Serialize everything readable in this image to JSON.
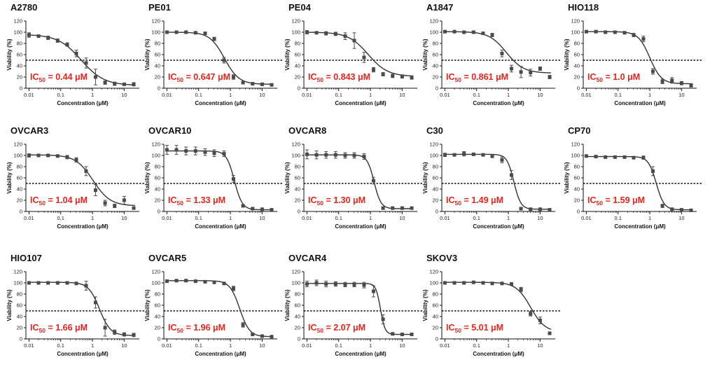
{
  "figure": {
    "ylabel": "Viability (%)",
    "xlabel": "Concentration (μM)",
    "ic_prefix": "IC",
    "ic_sub": "50",
    "ic_eq": " = ",
    "ic_unit": " μM",
    "ytick_labels": [
      "0",
      "20",
      "40",
      "60",
      "80",
      "100",
      "120"
    ],
    "xtick_labels": [
      "0.01",
      "0.1",
      "1",
      "10"
    ],
    "colors": {
      "ic50_text": "#e8241c",
      "curve": "#333333",
      "marker": "#4a4a4a",
      "threshold": "#111111"
    }
  },
  "chart_data": [
    {
      "type": "scatter",
      "title": "A2780",
      "ic50_label": "0.44",
      "ic50": 0.44,
      "hill": 1.2,
      "top": 96,
      "bottom": 5,
      "xlim": [
        0.008,
        30
      ],
      "ylim": [
        0,
        120
      ],
      "threshold_y": 50,
      "xlabel": "Concentration (μM)",
      "ylabel": "Viability (%)",
      "x": [
        0.01,
        0.02,
        0.04,
        0.08,
        0.16,
        0.31,
        0.63,
        1.25,
        2.5,
        5,
        10,
        20
      ],
      "y": [
        95,
        93,
        90,
        85,
        78,
        62,
        45,
        20,
        10,
        8,
        7,
        7
      ],
      "err": [
        4,
        2,
        3,
        3,
        3,
        6,
        9,
        14,
        3,
        3,
        2,
        3
      ]
    },
    {
      "type": "scatter",
      "title": "PE01",
      "ic50_label": "0.647",
      "ic50": 0.647,
      "hill": 1.9,
      "top": 100,
      "bottom": 7,
      "xlim": [
        0.008,
        30
      ],
      "ylim": [
        0,
        120
      ],
      "threshold_y": 50,
      "xlabel": "Concentration (μM)",
      "ylabel": "Viability (%)",
      "x": [
        0.01,
        0.02,
        0.04,
        0.08,
        0.16,
        0.31,
        0.63,
        1.25,
        2.5,
        5,
        10,
        20
      ],
      "y": [
        100,
        100,
        100,
        99,
        98,
        88,
        50,
        20,
        10,
        8,
        7,
        6
      ],
      "err": [
        2,
        2,
        2,
        2,
        2,
        3,
        5,
        4,
        2,
        2,
        2,
        2
      ]
    },
    {
      "type": "scatter",
      "title": "PE04",
      "ic50_label": "0.843",
      "ic50": 0.843,
      "hill": 1.4,
      "top": 100,
      "bottom": 21,
      "xlim": [
        0.008,
        30
      ],
      "ylim": [
        0,
        120
      ],
      "threshold_y": 50,
      "xlabel": "Concentration (μM)",
      "ylabel": "Viability (%)",
      "x": [
        0.01,
        0.02,
        0.04,
        0.08,
        0.16,
        0.31,
        0.63,
        1.25,
        2.5,
        5,
        10,
        20
      ],
      "y": [
        100,
        99,
        98,
        97,
        93,
        85,
        55,
        33,
        25,
        22,
        21,
        19
      ],
      "err": [
        3,
        2,
        3,
        3,
        6,
        14,
        9,
        4,
        3,
        3,
        3,
        3
      ]
    },
    {
      "type": "scatter",
      "title": "A1847",
      "ic50_label": "0.861",
      "ic50": 0.861,
      "hill": 1.6,
      "top": 101,
      "bottom": 27,
      "xlim": [
        0.008,
        30
      ],
      "ylim": [
        0,
        120
      ],
      "threshold_y": 50,
      "xlabel": "Concentration (μM)",
      "ylabel": "Viability (%)",
      "x": [
        0.01,
        0.02,
        0.04,
        0.08,
        0.16,
        0.31,
        0.63,
        1.25,
        2.5,
        5,
        10,
        20
      ],
      "y": [
        101,
        101,
        100,
        100,
        98,
        95,
        62,
        35,
        29,
        28,
        35,
        20
      ],
      "err": [
        2,
        1,
        1,
        1,
        2,
        3,
        6,
        6,
        10,
        6,
        3,
        3
      ]
    },
    {
      "type": "scatter",
      "title": "HIO118",
      "ic50_label": "1.0",
      "ic50": 1.0,
      "hill": 2.4,
      "top": 101,
      "bottom": 8,
      "xlim": [
        0.008,
        30
      ],
      "ylim": [
        0,
        120
      ],
      "threshold_y": 50,
      "xlabel": "Concentration (μM)",
      "ylabel": "Viability (%)",
      "x": [
        0.01,
        0.02,
        0.04,
        0.08,
        0.16,
        0.31,
        0.63,
        1.25,
        2.5,
        5,
        10,
        20
      ],
      "y": [
        101,
        101,
        100,
        100,
        99,
        95,
        88,
        30,
        12,
        14,
        9,
        5
      ],
      "err": [
        2,
        1,
        1,
        1,
        1,
        3,
        5,
        5,
        4,
        5,
        3,
        3
      ]
    },
    {
      "type": "scatter",
      "title": "OVCAR3",
      "ic50_label": "1.04",
      "ic50": 1.04,
      "hill": 1.6,
      "top": 101,
      "bottom": 10,
      "xlim": [
        0.008,
        30
      ],
      "ylim": [
        0,
        120
      ],
      "threshold_y": 50,
      "xlabel": "Concentration (μM)",
      "ylabel": "Viability (%)",
      "x": [
        0.01,
        0.02,
        0.04,
        0.08,
        0.16,
        0.31,
        0.63,
        1.25,
        2.5,
        5,
        10,
        20
      ],
      "y": [
        100,
        100,
        100,
        99,
        97,
        92,
        72,
        38,
        15,
        10,
        20,
        6
      ],
      "err": [
        3,
        2,
        2,
        2,
        3,
        4,
        8,
        10,
        5,
        3,
        7,
        2
      ]
    },
    {
      "type": "scatter",
      "title": "OVCAR10",
      "ic50_label": "1.33",
      "ic50": 1.33,
      "hill": 3.5,
      "top": 108,
      "bottom": 3,
      "xlim": [
        0.008,
        30
      ],
      "ylim": [
        0,
        120
      ],
      "threshold_y": 50,
      "xlabel": "Concentration (μM)",
      "ylabel": "Viability (%)",
      "x": [
        0.01,
        0.02,
        0.04,
        0.08,
        0.16,
        0.31,
        0.63,
        1.25,
        2.5,
        5,
        10,
        20
      ],
      "y": [
        110,
        110,
        108,
        108,
        106,
        104,
        103,
        58,
        10,
        5,
        4,
        3
      ],
      "err": [
        8,
        8,
        7,
        7,
        6,
        6,
        5,
        6,
        2,
        2,
        1,
        1
      ]
    },
    {
      "type": "scatter",
      "title": "OVCAR8",
      "ic50_label": "1.30",
      "ic50": 1.3,
      "hill": 4.0,
      "top": 101,
      "bottom": 5,
      "xlim": [
        0.008,
        30
      ],
      "ylim": [
        0,
        120
      ],
      "threshold_y": 50,
      "xlabel": "Concentration (μM)",
      "ylabel": "Viability (%)",
      "x": [
        0.01,
        0.02,
        0.04,
        0.08,
        0.16,
        0.31,
        0.63,
        1.25,
        2.5,
        5,
        10,
        20
      ],
      "y": [
        102,
        101,
        101,
        101,
        100,
        100,
        98,
        55,
        6,
        6,
        6,
        6
      ],
      "err": [
        8,
        7,
        6,
        6,
        5,
        5,
        5,
        6,
        2,
        2,
        2,
        2
      ]
    },
    {
      "type": "scatter",
      "title": "C30",
      "ic50_label": "1.49",
      "ic50": 1.49,
      "hill": 4.0,
      "top": 102,
      "bottom": 4,
      "xlim": [
        0.008,
        30
      ],
      "ylim": [
        0,
        120
      ],
      "threshold_y": 50,
      "xlabel": "Concentration (μM)",
      "ylabel": "Viability (%)",
      "x": [
        0.01,
        0.02,
        0.04,
        0.08,
        0.16,
        0.31,
        0.63,
        1.25,
        2.5,
        5,
        10,
        20
      ],
      "y": [
        101,
        101,
        103,
        102,
        101,
        99,
        92,
        65,
        5,
        4,
        4,
        3
      ],
      "err": [
        3,
        2,
        4,
        2,
        2,
        3,
        5,
        8,
        2,
        2,
        2,
        2
      ]
    },
    {
      "type": "scatter",
      "title": "CP70",
      "ic50_label": "1.59",
      "ic50": 1.59,
      "hill": 3.5,
      "top": 98,
      "bottom": 3,
      "xlim": [
        0.008,
        30
      ],
      "ylim": [
        0,
        120
      ],
      "threshold_y": 50,
      "xlabel": "Concentration (μM)",
      "ylabel": "Viability (%)",
      "x": [
        0.01,
        0.02,
        0.04,
        0.08,
        0.16,
        0.31,
        0.63,
        1.25,
        2.5,
        5,
        10,
        20
      ],
      "y": [
        99,
        98,
        97,
        97,
        97,
        96,
        96,
        72,
        10,
        4,
        3,
        2
      ],
      "err": [
        1,
        1,
        1,
        1,
        1,
        1,
        3,
        8,
        3,
        2,
        1,
        1
      ]
    },
    {
      "type": "scatter",
      "title": "HIO107",
      "ic50_label": "1.66",
      "ic50": 1.66,
      "hill": 2.5,
      "top": 101,
      "bottom": 6,
      "xlim": [
        0.008,
        30
      ],
      "ylim": [
        0,
        120
      ],
      "threshold_y": 50,
      "xlabel": "Concentration (μM)",
      "ylabel": "Viability (%)",
      "x": [
        0.01,
        0.02,
        0.04,
        0.08,
        0.16,
        0.31,
        0.63,
        1.25,
        2.5,
        5,
        10,
        20
      ],
      "y": [
        100,
        100,
        100,
        100,
        100,
        99,
        95,
        65,
        20,
        12,
        8,
        7
      ],
      "err": [
        2,
        1,
        1,
        1,
        1,
        2,
        8,
        10,
        15,
        4,
        3,
        3
      ]
    },
    {
      "type": "scatter",
      "title": "OVCAR5",
      "ic50_label": "1.96",
      "ic50": 1.96,
      "hill": 2.8,
      "top": 104,
      "bottom": 4,
      "xlim": [
        0.008,
        30
      ],
      "ylim": [
        0,
        120
      ],
      "threshold_y": 50,
      "xlabel": "Concentration (μM)",
      "ylabel": "Viability (%)",
      "x": [
        0.01,
        0.02,
        0.04,
        0.08,
        0.16,
        0.31,
        0.63,
        1.25,
        2.5,
        5,
        10,
        20
      ],
      "y": [
        103,
        104,
        104,
        103,
        102,
        101,
        99,
        90,
        25,
        8,
        5,
        4
      ],
      "err": [
        2,
        2,
        2,
        2,
        2,
        2,
        2,
        4,
        4,
        2,
        1,
        1
      ]
    },
    {
      "type": "scatter",
      "title": "OVCAR4",
      "ic50_label": "2.07",
      "ic50": 2.07,
      "hill": 6.0,
      "top": 99,
      "bottom": 8,
      "xlim": [
        0.008,
        30
      ],
      "ylim": [
        0,
        120
      ],
      "threshold_y": 50,
      "xlabel": "Concentration (μM)",
      "ylabel": "Viability (%)",
      "x": [
        0.01,
        0.02,
        0.04,
        0.08,
        0.16,
        0.31,
        0.63,
        1.25,
        2.5,
        5,
        10,
        20
      ],
      "y": [
        98,
        100,
        98,
        98,
        97,
        97,
        96,
        85,
        35,
        9,
        8,
        8
      ],
      "err": [
        5,
        5,
        5,
        4,
        4,
        4,
        5,
        10,
        8,
        2,
        2,
        2
      ]
    },
    {
      "type": "scatter",
      "title": "SKOV3",
      "ic50_label": "5.01",
      "ic50": 5.01,
      "hill": 1.9,
      "top": 101,
      "bottom": 12,
      "xlim": [
        0.008,
        30
      ],
      "ylim": [
        0,
        120
      ],
      "threshold_y": 50,
      "xlabel": "Concentration (μM)",
      "ylabel": "Viability (%)",
      "x": [
        0.01,
        0.02,
        0.04,
        0.08,
        0.16,
        0.31,
        0.63,
        1.25,
        2.5,
        5,
        10,
        20
      ],
      "y": [
        100,
        100,
        100,
        101,
        100,
        99,
        99,
        98,
        88,
        45,
        33,
        10
      ],
      "err": [
        1,
        1,
        1,
        1,
        1,
        1,
        1,
        2,
        4,
        4,
        6,
        2
      ]
    }
  ]
}
